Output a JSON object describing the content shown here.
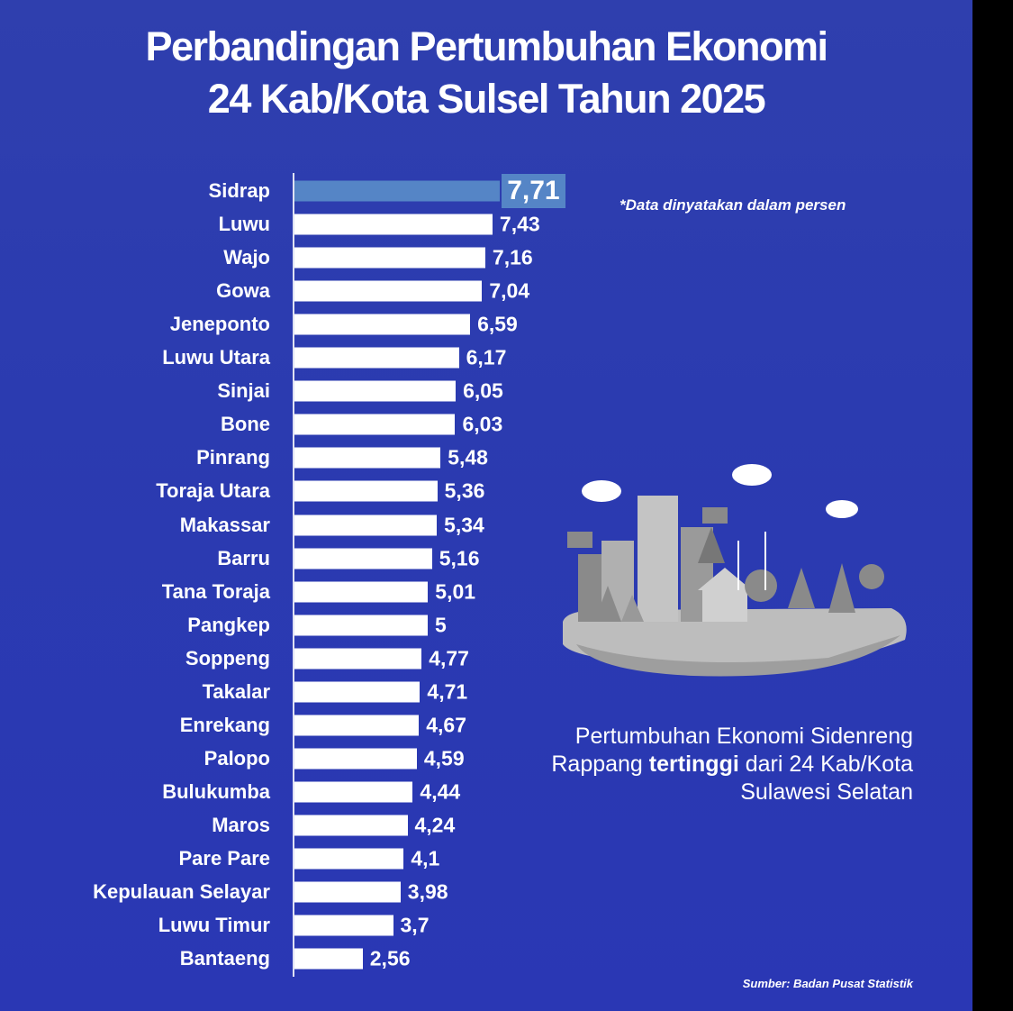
{
  "title_line1": "Perbandingan Pertumbuhan Ekonomi",
  "title_line2": "24 Kab/Kota Sulsel Tahun 2025",
  "note": "*Data dinyatakan dalam persen",
  "description": {
    "part1": "Pertumbuhan Ekonomi Sidenreng Rappang ",
    "bold": "tertinggi",
    "part2": " dari 24 Kab/Kota Sulawesi Selatan"
  },
  "source": "Sumber: Badan Pusat Statistik",
  "colors": {
    "background": "#2b3bb0",
    "bar": "#ffffff",
    "highlight": "#5585c6"
  },
  "chart_data": {
    "type": "bar",
    "orientation": "horizontal",
    "categories": [
      "Sidrap",
      "Luwu",
      "Wajo",
      "Gowa",
      "Jeneponto",
      "Luwu Utara",
      "Sinjai",
      "Bone",
      "Pinrang",
      "Toraja Utara",
      "Makassar",
      "Barru",
      "Tana Toraja",
      "Pangkep",
      "Soppeng",
      "Takalar",
      "Enrekang",
      "Palopo",
      "Bulukumba",
      "Maros",
      "Pare Pare",
      "Kepulauan Selayar",
      "Luwu Timur",
      "Bantaeng"
    ],
    "values": [
      7.71,
      7.43,
      7.16,
      7.04,
      6.59,
      6.17,
      6.05,
      6.03,
      5.48,
      5.36,
      5.34,
      5.16,
      5.01,
      5,
      4.77,
      4.71,
      4.67,
      4.59,
      4.44,
      4.24,
      4.1,
      3.98,
      3.7,
      2.56
    ],
    "value_labels": [
      "7,71",
      "7,43",
      "7,16",
      "7,04",
      "6,59",
      "6,17",
      "6,05",
      "6,03",
      "5,48",
      "5,36",
      "5,34",
      "5,16",
      "5,01",
      "5",
      "4,77",
      "4,71",
      "4,67",
      "4,59",
      "4,44",
      "4,24",
      "4,1",
      "3,98",
      "3,7",
      "2,56"
    ],
    "highlight": "Sidrap",
    "unit": "persen",
    "xlim": [
      0,
      8
    ],
    "grid": false
  }
}
